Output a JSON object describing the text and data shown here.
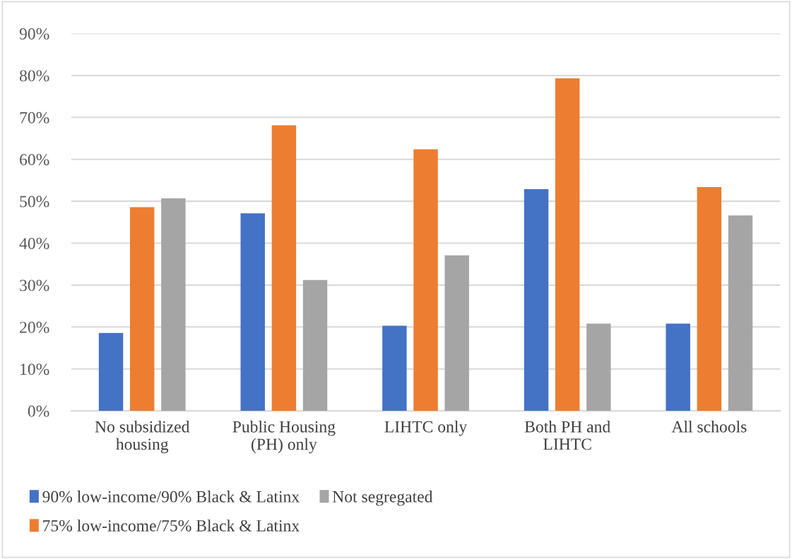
{
  "chart_data": {
    "type": "bar",
    "categories": [
      "No subsidized\nhousing",
      "Public Housing\n(PH) only",
      "LIHTC only",
      "Both PH and\nLIHTC",
      "All schools"
    ],
    "series": [
      {
        "name": "90% low-income/90% Black & Latinx",
        "color": "#4472c4",
        "values": [
          18.6,
          47.1,
          20.3,
          52.9,
          20.8
        ]
      },
      {
        "name": "75% low-income/75% Black & Latinx",
        "color": "#ed7d31",
        "values": [
          48.6,
          68.1,
          62.4,
          79.3,
          53.4
        ]
      },
      {
        "name": "Not segregated",
        "color": "#a5a5a5",
        "values": [
          50.7,
          31.2,
          37.1,
          20.8,
          46.6
        ]
      }
    ],
    "ylim": [
      0,
      90
    ],
    "yticks": [
      {
        "value": 0,
        "label": "0%"
      },
      {
        "value": 10,
        "label": "10%"
      },
      {
        "value": 20,
        "label": "20%"
      },
      {
        "value": 30,
        "label": "30%"
      },
      {
        "value": 40,
        "label": "40%"
      },
      {
        "value": 50,
        "label": "50%"
      },
      {
        "value": 60,
        "label": "60%"
      },
      {
        "value": 70,
        "label": "70%"
      },
      {
        "value": 80,
        "label": "80%"
      },
      {
        "value": 90,
        "label": "90%"
      }
    ],
    "grid": "y",
    "legend": "bottom"
  }
}
